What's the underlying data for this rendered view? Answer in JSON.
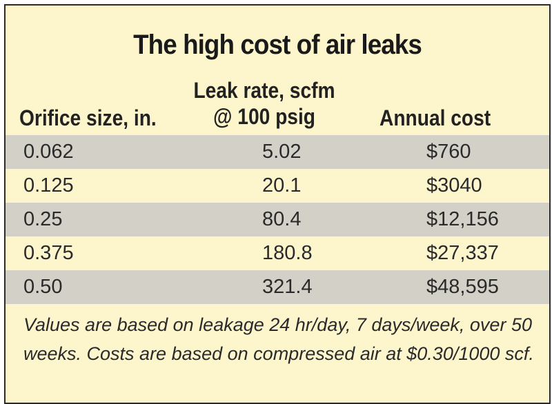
{
  "title": "The high cost of air leaks",
  "headers": {
    "orifice": "Orifice size, in.",
    "leak_line1": "Leak rate, scfm",
    "leak_line2": "@ 100 psig",
    "cost": "Annual cost"
  },
  "rows": [
    {
      "orifice": "0.062",
      "leak": "5.02",
      "cost": "$760"
    },
    {
      "orifice": "0.125",
      "leak": "20.1",
      "cost": "$3040"
    },
    {
      "orifice": "0.25",
      "leak": "80.4",
      "cost": "$12,156"
    },
    {
      "orifice": "0.375",
      "leak": "180.8",
      "cost": "$27,337"
    },
    {
      "orifice": "0.50",
      "leak": "321.4",
      "cost": "$48,595"
    }
  ],
  "note": "Values are based on leakage 24 hr/day, 7 days/week, over 50 weeks. Costs are based on compressed air at $0.30/1000 scf.",
  "colors": {
    "background": "#fdf6cc",
    "shaded_row": "#d3d0c8",
    "border": "#2a2a2a"
  }
}
